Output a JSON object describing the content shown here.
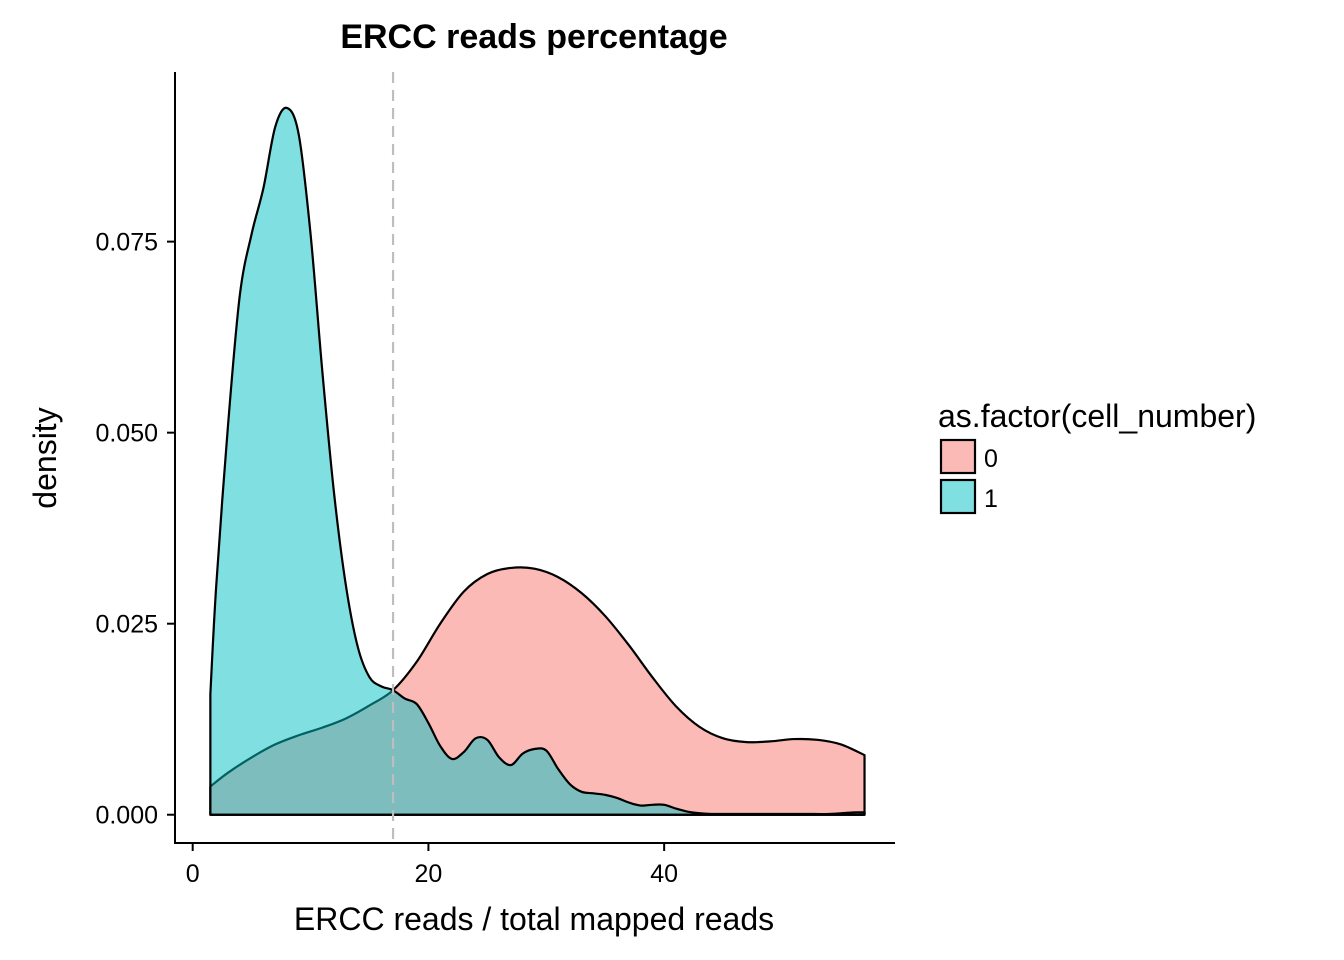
{
  "chart_data": {
    "type": "area",
    "title": "ERCC reads percentage",
    "xlabel": "ERCC reads / total mapped reads",
    "ylabel": "density",
    "xlim": [
      -1.5,
      59.5
    ],
    "ylim": [
      -0.0037,
      0.0972
    ],
    "x_ticks": [
      0,
      20,
      40
    ],
    "y_ticks": [
      0.0,
      0.025,
      0.05,
      0.075
    ],
    "x_tick_labels": [
      "0",
      "20",
      "40"
    ],
    "y_tick_labels": [
      "0.000",
      "0.025",
      "0.050",
      "0.075"
    ],
    "vline": {
      "x": 17,
      "style": "dashed",
      "color": "#bebebe"
    },
    "grid": false,
    "legend": {
      "title": "as.factor(cell_number)",
      "position": "right"
    },
    "series": [
      {
        "name": "0",
        "color": "#f8766d",
        "fill_alpha": 0.5,
        "x": [
          1.5,
          3,
          5,
          7,
          9,
          11,
          13,
          15,
          17,
          19,
          21,
          23,
          25,
          27,
          29,
          31,
          33,
          35,
          37,
          39,
          41,
          43,
          45,
          47,
          49,
          51,
          53,
          55,
          57
        ],
        "y": [
          0.0037,
          0.0055,
          0.0075,
          0.0092,
          0.0104,
          0.0114,
          0.0126,
          0.0143,
          0.0163,
          0.02,
          0.025,
          0.0292,
          0.0315,
          0.0323,
          0.0322,
          0.0311,
          0.029,
          0.026,
          0.0222,
          0.018,
          0.0142,
          0.0115,
          0.01,
          0.0095,
          0.0096,
          0.0099,
          0.0098,
          0.0092,
          0.0078
        ]
      },
      {
        "name": "1",
        "color": "#00bfc4",
        "fill_alpha": 0.5,
        "x": [
          1.5,
          2,
          3,
          4,
          5,
          6,
          7,
          8,
          9,
          10,
          11,
          12,
          13,
          14,
          15,
          16,
          17,
          18,
          19,
          20,
          21,
          22,
          23,
          24,
          25,
          26,
          27,
          28,
          29,
          30,
          31,
          32,
          33,
          34,
          35,
          36,
          37,
          38,
          39,
          40,
          41,
          42,
          43,
          44,
          46,
          48,
          50,
          52,
          54,
          56,
          57
        ],
        "y": [
          0.0158,
          0.03,
          0.051,
          0.068,
          0.076,
          0.082,
          0.09,
          0.0925,
          0.089,
          0.076,
          0.058,
          0.042,
          0.03,
          0.022,
          0.018,
          0.0168,
          0.0163,
          0.0152,
          0.0145,
          0.012,
          0.009,
          0.0073,
          0.0082,
          0.01,
          0.0098,
          0.0075,
          0.0065,
          0.008,
          0.0086,
          0.0084,
          0.006,
          0.004,
          0.003,
          0.0028,
          0.0026,
          0.0022,
          0.0016,
          0.0012,
          0.0013,
          0.0013,
          0.0008,
          0.0004,
          0.0002,
          0.0001,
          0.0001,
          0.0001,
          0.0001,
          0.0001,
          0.0001,
          0.0003,
          0.0003
        ]
      }
    ]
  }
}
